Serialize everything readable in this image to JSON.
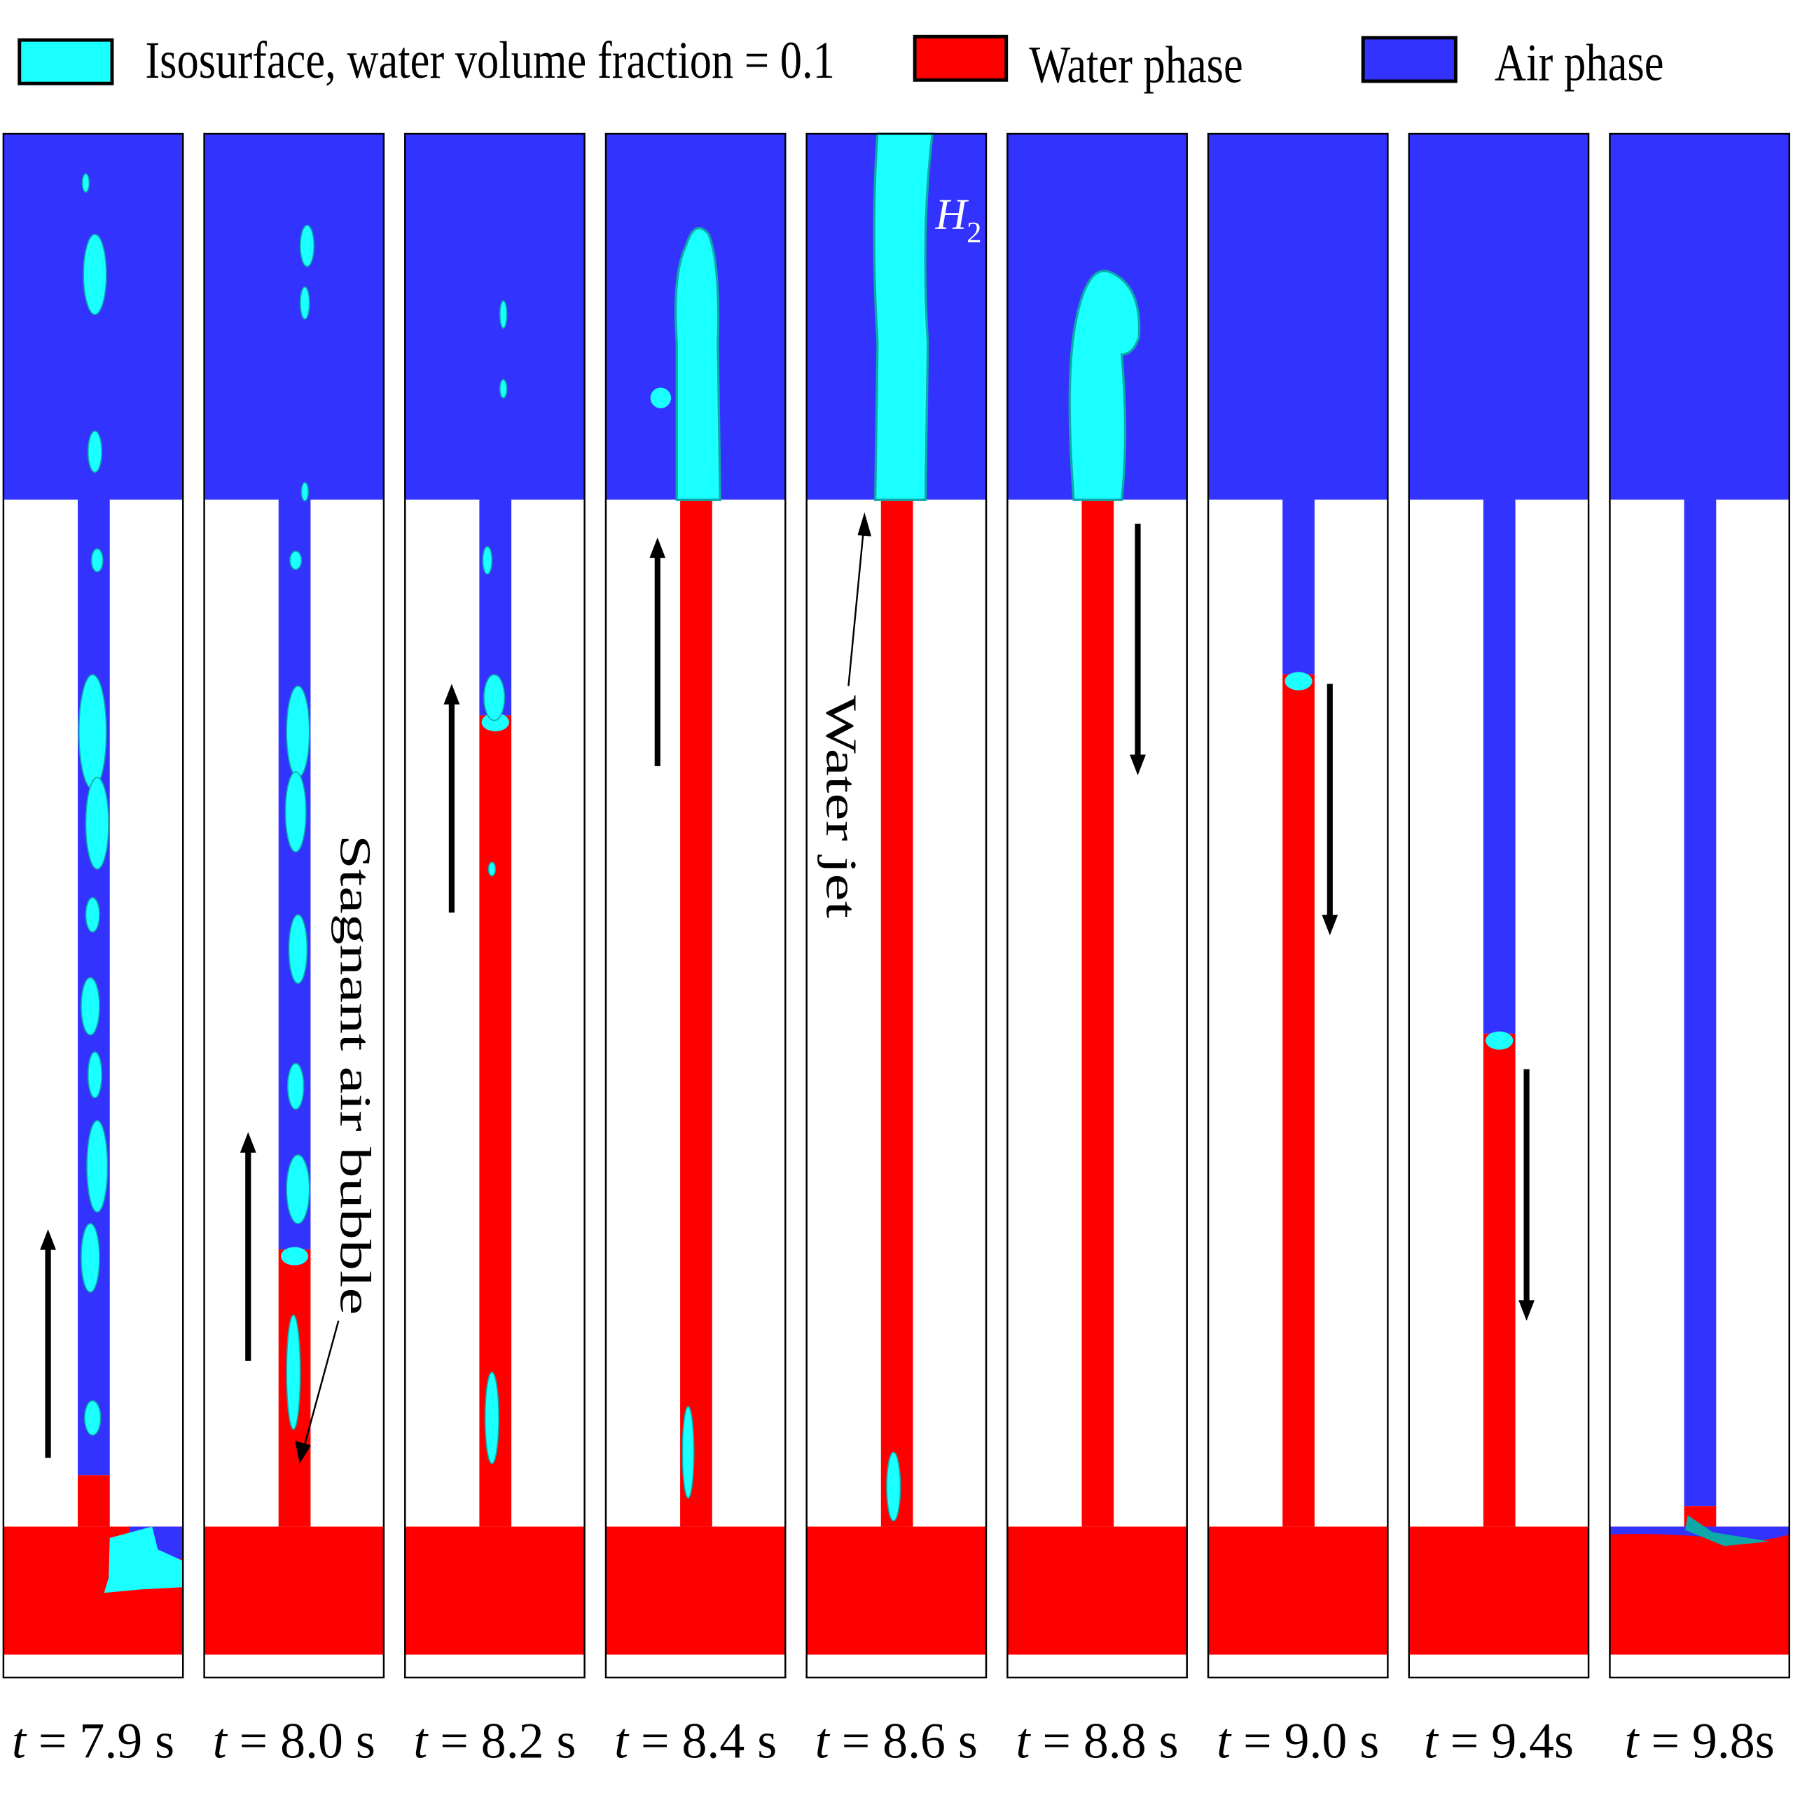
{
  "legend": [
    {
      "label": "Isosurface, water volume fraction = 0.1",
      "color": "#1affff"
    },
    {
      "label": "Water phase",
      "color": "#ff0000"
    },
    {
      "label": "Air phase",
      "color": "#3333ff"
    }
  ],
  "colors": {
    "air": "#3333ff",
    "water": "#ff0000",
    "isosurface": "#1affff",
    "isosurface_shade": "#0fa8a8"
  },
  "panels": [
    {
      "time": {
        "var": "t",
        "rest": " = 7.9 s"
      },
      "pipe_water_fraction": 0.05,
      "flow_arrow": "up",
      "plume": "none"
    },
    {
      "time": {
        "var": "t",
        "rest": " = 8.0 s"
      },
      "pipe_water_fraction": 0.27,
      "flow_arrow": "up",
      "plume": "none"
    },
    {
      "time": {
        "var": "t",
        "rest": " = 8.2 s"
      },
      "pipe_water_fraction": 0.79,
      "flow_arrow": "up",
      "plume": "none"
    },
    {
      "time": {
        "var": "t",
        "rest": " = 8.4 s"
      },
      "pipe_water_fraction": 1.0,
      "flow_arrow": "up",
      "plume": "medium"
    },
    {
      "time": {
        "var": "t",
        "rest": " = 8.6 s"
      },
      "pipe_water_fraction": 1.0,
      "flow_arrow": "none",
      "plume": "tall"
    },
    {
      "time": {
        "var": "t",
        "rest": " = 8.8 s"
      },
      "pipe_water_fraction": 1.0,
      "flow_arrow": "down",
      "plume": "collapsing"
    },
    {
      "time": {
        "var": "t",
        "rest": " = 9.0 s"
      },
      "pipe_water_fraction": 0.83,
      "flow_arrow": "down",
      "plume": "none"
    },
    {
      "time": {
        "var": "t",
        "rest": " = 9.4s"
      },
      "pipe_water_fraction": 0.48,
      "flow_arrow": "down",
      "plume": "none"
    },
    {
      "time": {
        "var": "t",
        "rest": " = 9.8s"
      },
      "pipe_water_fraction": 0.02,
      "flow_arrow": "none",
      "plume": "none"
    }
  ],
  "annotations": {
    "stagnant_air_bubble": "Stagnant air bubble",
    "water_jet": "Water jet",
    "h2_var": "H",
    "h2_sub": "2"
  }
}
